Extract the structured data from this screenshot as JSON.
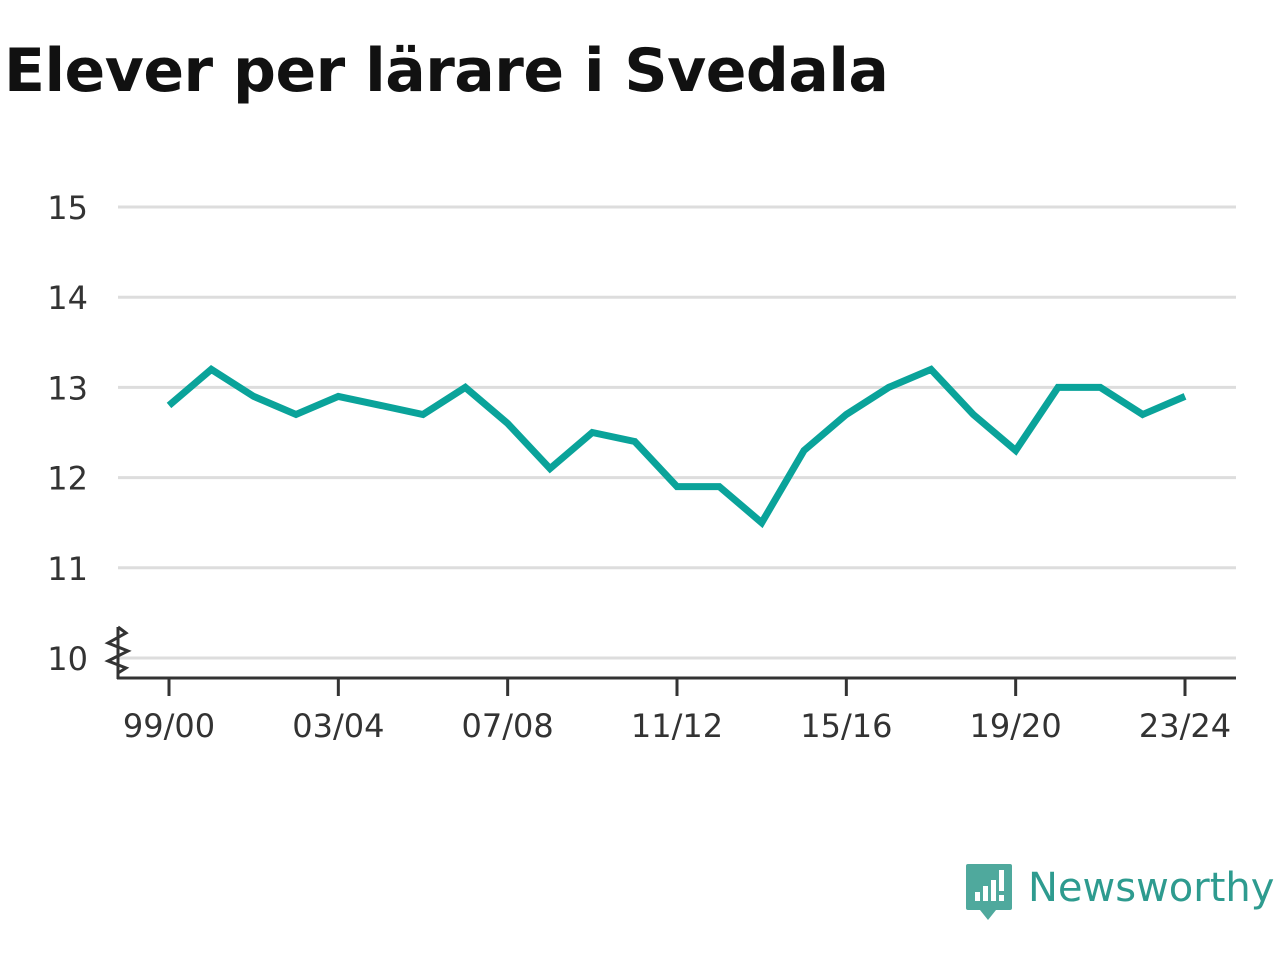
{
  "title": "Elever per lärare i Svedala",
  "brand": {
    "name": "Newsworthy",
    "color": "#2e9b8f"
  },
  "chart_data": {
    "type": "line",
    "title": "Elever per lärare i Svedala",
    "xlabel": "",
    "ylabel": "",
    "ylim": [
      10,
      15
    ],
    "y_ticks": [
      10,
      11,
      12,
      13,
      14,
      15
    ],
    "y_axis_break": true,
    "grid": true,
    "x_tick_labels": [
      "99/00",
      "03/04",
      "07/08",
      "11/12",
      "15/16",
      "19/20",
      "23/24"
    ],
    "x": [
      "99/00",
      "00/01",
      "01/02",
      "02/03",
      "03/04",
      "04/05",
      "05/06",
      "06/07",
      "07/08",
      "08/09",
      "09/10",
      "10/11",
      "11/12",
      "12/13",
      "13/14",
      "14/15",
      "15/16",
      "16/17",
      "17/18",
      "18/19",
      "19/20",
      "20/21",
      "21/22",
      "22/23",
      "23/24"
    ],
    "series": [
      {
        "color": "#0aa39a",
        "values": [
          12.8,
          13.2,
          12.9,
          12.7,
          12.9,
          12.8,
          12.7,
          13.0,
          12.6,
          12.1,
          12.5,
          12.4,
          11.9,
          11.9,
          11.5,
          12.3,
          12.7,
          13.0,
          13.2,
          12.7,
          12.3,
          13.0,
          13.0,
          12.7,
          12.9
        ]
      }
    ]
  }
}
